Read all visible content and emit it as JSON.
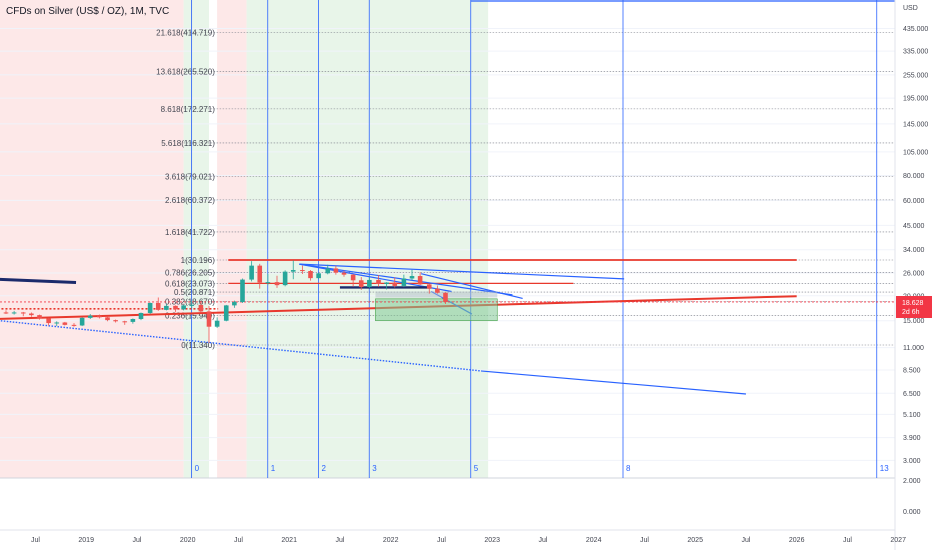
{
  "header": {
    "title": "CFDs on Silver (US$ / OZ), 1M, TVC",
    "scale_unit": "USD"
  },
  "price_tag": {
    "price": "18.628",
    "countdown": "2d 6h",
    "color": "#f23645"
  },
  "colors": {
    "bull": "#26a69a",
    "bear": "#ef5350",
    "trend_red": "#e8382c",
    "trend_blue": "#2962ff",
    "trend_navy": "#1b2a6b",
    "fib_line": "#787b86",
    "pink_zone": "#fde8e8",
    "green_zone": "#e8f5e9"
  },
  "chart_data": {
    "type": "candlestick",
    "title": "CFDs on Silver (US$ / OZ), 1M, TVC",
    "y_scale": "log",
    "ylim": [
      2.5,
      520
    ],
    "y_ticks": [
      "435.000",
      "335.000",
      "255.000",
      "195.000",
      "145.000",
      "105.000",
      "80.000",
      "60.000",
      "45.000",
      "34.000",
      "26.000",
      "20.000",
      "15.000",
      "11.000",
      "8.500",
      "6.500",
      "5.100",
      "3.900",
      "3.000"
    ],
    "sub_ticks": [
      "2.000",
      "0.000"
    ],
    "x_labels": [
      "Jul",
      "2019",
      "Jul",
      "2020",
      "Jul",
      "2021",
      "Jul",
      "2022",
      "Jul",
      "2023",
      "Jul",
      "2024",
      "Jul",
      "2025",
      "Jul",
      "2026",
      "Jul",
      "2027"
    ],
    "fib_levels": [
      {
        "label": "21.618(414.719)",
        "value": 414.719
      },
      {
        "label": "13.618(265.520)",
        "value": 265.52
      },
      {
        "label": "8.618(172.271)",
        "value": 172.271
      },
      {
        "label": "5.618(116.321)",
        "value": 116.321
      },
      {
        "label": "3.618(79.021)",
        "value": 79.021
      },
      {
        "label": "2.618(60.372)",
        "value": 60.372
      },
      {
        "label": "1.618(41.722)",
        "value": 41.722
      },
      {
        "label": "1(30.196)",
        "value": 30.196
      },
      {
        "label": "0.786(26.205)",
        "value": 26.205
      },
      {
        "label": "0.618(23.073)",
        "value": 23.073
      },
      {
        "label": "0.5(20.871)",
        "value": 20.871
      },
      {
        "label": "0.382(18.670)",
        "value": 18.67
      },
      {
        "label": "0.236(15.949)",
        "value": 15.949
      },
      {
        "label": "0(11.340)",
        "value": 11.34
      }
    ],
    "fib_cycle_labels": [
      "0",
      "1",
      "2",
      "3",
      "5",
      "8",
      "13"
    ],
    "candles": [
      {
        "t": 2018.21,
        "o": 16.5,
        "h": 16.9,
        "l": 16.2,
        "c": 16.4
      },
      {
        "t": 2018.29,
        "o": 16.4,
        "h": 16.8,
        "l": 16.1,
        "c": 16.5
      },
      {
        "t": 2018.38,
        "o": 16.5,
        "h": 16.6,
        "l": 15.8,
        "c": 16.3
      },
      {
        "t": 2018.46,
        "o": 16.3,
        "h": 16.5,
        "l": 15.7,
        "c": 16.0
      },
      {
        "t": 2018.54,
        "o": 16.0,
        "h": 16.1,
        "l": 15.2,
        "c": 15.4
      },
      {
        "t": 2018.63,
        "o": 15.4,
        "h": 15.5,
        "l": 14.2,
        "c": 14.6
      },
      {
        "t": 2018.71,
        "o": 14.6,
        "h": 14.9,
        "l": 14.1,
        "c": 14.7
      },
      {
        "t": 2018.79,
        "o": 14.7,
        "h": 14.8,
        "l": 14.2,
        "c": 14.3
      },
      {
        "t": 2018.88,
        "o": 14.3,
        "h": 14.6,
        "l": 14.0,
        "c": 14.2
      },
      {
        "t": 2018.96,
        "o": 14.2,
        "h": 15.6,
        "l": 14.1,
        "c": 15.5
      },
      {
        "t": 2019.04,
        "o": 15.5,
        "h": 16.2,
        "l": 15.3,
        "c": 15.9
      },
      {
        "t": 2019.13,
        "o": 15.9,
        "h": 16.1,
        "l": 15.4,
        "c": 15.6
      },
      {
        "t": 2019.21,
        "o": 15.6,
        "h": 15.7,
        "l": 14.9,
        "c": 15.1
      },
      {
        "t": 2019.29,
        "o": 15.1,
        "h": 15.2,
        "l": 14.7,
        "c": 14.9
      },
      {
        "t": 2019.38,
        "o": 14.9,
        "h": 15.0,
        "l": 14.3,
        "c": 14.8
      },
      {
        "t": 2019.46,
        "o": 14.8,
        "h": 15.4,
        "l": 14.5,
        "c": 15.3
      },
      {
        "t": 2019.54,
        "o": 15.3,
        "h": 16.5,
        "l": 15.1,
        "c": 16.4
      },
      {
        "t": 2019.63,
        "o": 16.4,
        "h": 18.5,
        "l": 16.2,
        "c": 18.4
      },
      {
        "t": 2019.71,
        "o": 18.4,
        "h": 19.6,
        "l": 16.8,
        "c": 17.0
      },
      {
        "t": 2019.79,
        "o": 17.0,
        "h": 18.2,
        "l": 16.9,
        "c": 17.8
      },
      {
        "t": 2019.88,
        "o": 17.8,
        "h": 17.9,
        "l": 16.6,
        "c": 17.1
      },
      {
        "t": 2019.96,
        "o": 17.1,
        "h": 18.0,
        "l": 16.9,
        "c": 17.9
      },
      {
        "t": 2020.04,
        "o": 17.9,
        "h": 18.9,
        "l": 17.3,
        "c": 18.0
      },
      {
        "t": 2020.13,
        "o": 18.0,
        "h": 18.8,
        "l": 16.5,
        "c": 16.7
      },
      {
        "t": 2020.21,
        "o": 16.7,
        "h": 17.8,
        "l": 11.6,
        "c": 14.0
      },
      {
        "t": 2020.29,
        "o": 14.0,
        "h": 15.6,
        "l": 13.8,
        "c": 15.0
      },
      {
        "t": 2020.38,
        "o": 15.0,
        "h": 18.0,
        "l": 14.9,
        "c": 17.9
      },
      {
        "t": 2020.46,
        "o": 17.9,
        "h": 18.9,
        "l": 17.4,
        "c": 18.6
      },
      {
        "t": 2020.54,
        "o": 18.6,
        "h": 24.4,
        "l": 18.4,
        "c": 24.1
      },
      {
        "t": 2020.63,
        "o": 24.1,
        "h": 29.8,
        "l": 23.6,
        "c": 28.3
      },
      {
        "t": 2020.71,
        "o": 28.3,
        "h": 28.9,
        "l": 21.7,
        "c": 23.3
      },
      {
        "t": 2020.79,
        "o": 23.3,
        "h": 25.8,
        "l": 22.6,
        "c": 23.4
      },
      {
        "t": 2020.88,
        "o": 23.4,
        "h": 25.2,
        "l": 21.9,
        "c": 22.6
      },
      {
        "t": 2020.96,
        "o": 22.6,
        "h": 26.8,
        "l": 22.3,
        "c": 26.4
      },
      {
        "t": 2021.04,
        "o": 26.4,
        "h": 30.0,
        "l": 24.2,
        "c": 26.9
      },
      {
        "t": 2021.13,
        "o": 26.9,
        "h": 28.3,
        "l": 25.7,
        "c": 26.6
      },
      {
        "t": 2021.21,
        "o": 26.6,
        "h": 26.9,
        "l": 23.8,
        "c": 24.5
      },
      {
        "t": 2021.29,
        "o": 24.5,
        "h": 26.1,
        "l": 24.3,
        "c": 25.9
      },
      {
        "t": 2021.38,
        "o": 25.9,
        "h": 28.6,
        "l": 25.6,
        "c": 27.4
      },
      {
        "t": 2021.46,
        "o": 27.4,
        "h": 28.3,
        "l": 25.5,
        "c": 26.1
      },
      {
        "t": 2021.54,
        "o": 26.1,
        "h": 26.7,
        "l": 24.9,
        "c": 25.5
      },
      {
        "t": 2021.63,
        "o": 25.5,
        "h": 25.7,
        "l": 22.2,
        "c": 23.9
      },
      {
        "t": 2021.71,
        "o": 23.9,
        "h": 24.8,
        "l": 21.4,
        "c": 22.1
      },
      {
        "t": 2021.79,
        "o": 22.1,
        "h": 24.8,
        "l": 21.9,
        "c": 24.0
      },
      {
        "t": 2021.88,
        "o": 24.0,
        "h": 25.4,
        "l": 22.2,
        "c": 22.9
      },
      {
        "t": 2021.96,
        "o": 22.9,
        "h": 23.4,
        "l": 21.5,
        "c": 23.3
      },
      {
        "t": 2022.04,
        "o": 23.3,
        "h": 24.7,
        "l": 22.0,
        "c": 22.4
      },
      {
        "t": 2022.13,
        "o": 22.4,
        "h": 25.5,
        "l": 22.1,
        "c": 24.4
      },
      {
        "t": 2022.21,
        "o": 24.4,
        "h": 27.0,
        "l": 23.9,
        "c": 25.1
      },
      {
        "t": 2022.29,
        "o": 25.1,
        "h": 26.2,
        "l": 22.6,
        "c": 22.8
      },
      {
        "t": 2022.38,
        "o": 22.8,
        "h": 22.9,
        "l": 20.5,
        "c": 21.7
      },
      {
        "t": 2022.46,
        "o": 21.7,
        "h": 22.5,
        "l": 20.5,
        "c": 20.7
      },
      {
        "t": 2022.54,
        "o": 20.7,
        "h": 20.8,
        "l": 18.2,
        "c": 18.6
      }
    ],
    "zones": [
      {
        "label": "pink",
        "x": [
          2017.9,
          2019.96
        ],
        "color": "#fde8e8"
      },
      {
        "label": "pink",
        "x": [
          2020.29,
          2020.58
        ],
        "color": "#fde8e8"
      },
      {
        "label": "green",
        "x": [
          2019.96,
          2020.21
        ],
        "color": "#e8f5e9"
      },
      {
        "label": "green",
        "x": [
          2020.58,
          2022.96
        ],
        "color": "#e8f5e9"
      }
    ]
  }
}
